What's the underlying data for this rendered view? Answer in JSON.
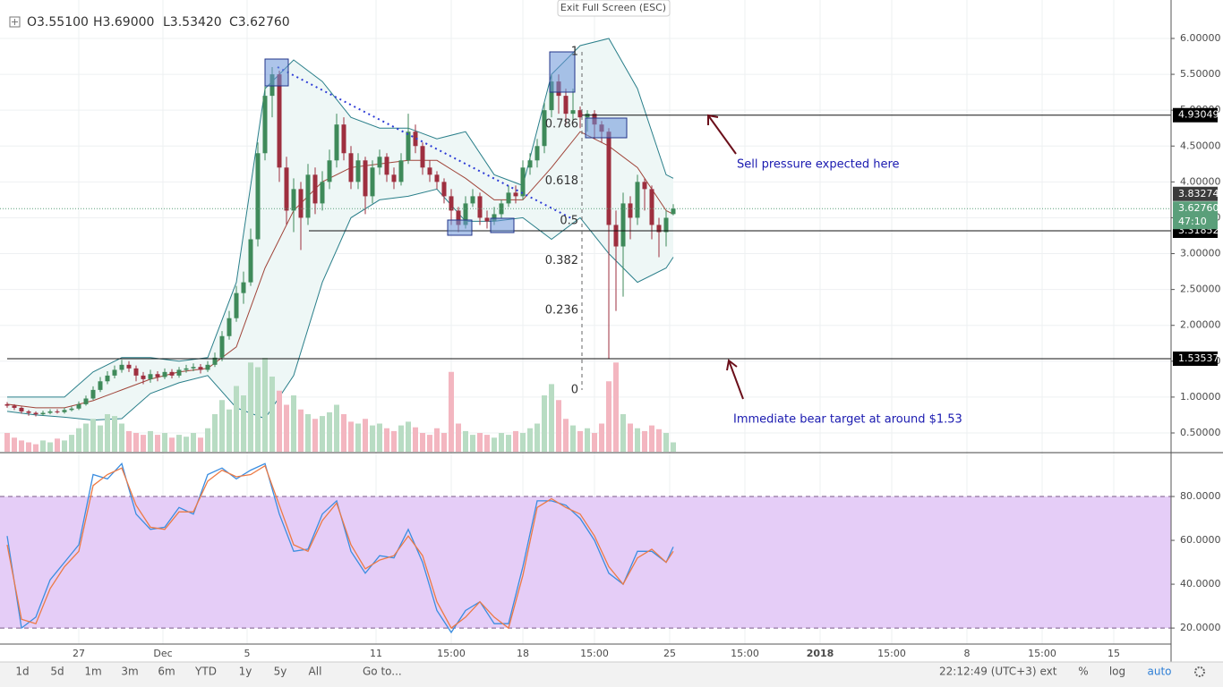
{
  "chart_data": {
    "type": "candlestick",
    "header": [
      "O3.55100",
      "H3.69000",
      "L3.53420",
      "C3.62760"
    ],
    "open": [
      0.9,
      0.88,
      0.85,
      0.8,
      0.78,
      0.76,
      0.78,
      0.8,
      0.79,
      0.82,
      0.84,
      0.9,
      0.98,
      1.1,
      1.22,
      1.3,
      1.38,
      1.45,
      1.4,
      1.3,
      1.25,
      1.32,
      1.28,
      1.35,
      1.3,
      1.38,
      1.4,
      1.42,
      1.38,
      1.45,
      1.55,
      1.85,
      2.1,
      2.45,
      2.6,
      3.2,
      4.4,
      5.2,
      5.5,
      4.2,
      3.6,
      3.9,
      3.5,
      4.1,
      3.7,
      4.0,
      4.3,
      4.8,
      4.4,
      4.0,
      4.3,
      3.8,
      4.2,
      4.35,
      4.1,
      4.0,
      4.3,
      4.7,
      4.5,
      4.2,
      4.1,
      4.0,
      3.8,
      3.6,
      3.4,
      3.7,
      3.8,
      3.5,
      3.45,
      3.55,
      3.7,
      3.85,
      3.8,
      4.2,
      4.3,
      4.5,
      5.0,
      5.4,
      5.2,
      4.95,
      5.0,
      4.9,
      4.95,
      4.8,
      4.7,
      3.4,
      3.1,
      3.7,
      3.5,
      4.0,
      3.9,
      3.4,
      3.3,
      3.551
    ],
    "high": [
      0.93,
      0.9,
      0.87,
      0.82,
      0.8,
      0.81,
      0.83,
      0.83,
      0.85,
      0.87,
      0.94,
      1.02,
      1.15,
      1.28,
      1.36,
      1.44,
      1.52,
      1.5,
      1.44,
      1.35,
      1.38,
      1.36,
      1.4,
      1.39,
      1.42,
      1.45,
      1.47,
      1.46,
      1.5,
      1.62,
      1.92,
      2.2,
      2.55,
      2.75,
      3.35,
      4.55,
      5.4,
      5.6,
      5.55,
      4.35,
      4.05,
      4.0,
      4.25,
      4.2,
      4.15,
      4.45,
      4.95,
      4.9,
      4.5,
      4.4,
      4.35,
      4.3,
      4.45,
      4.4,
      4.2,
      4.4,
      4.95,
      4.8,
      4.55,
      4.3,
      4.15,
      4.05,
      3.9,
      3.65,
      3.8,
      3.9,
      3.85,
      3.6,
      3.65,
      3.75,
      3.95,
      3.95,
      4.3,
      4.4,
      4.6,
      5.1,
      5.5,
      5.5,
      5.3,
      5.3,
      5.05,
      5.0,
      5.0,
      4.85,
      4.75,
      3.6,
      3.85,
      3.8,
      4.1,
      4.05,
      3.95,
      3.5,
      3.6,
      3.69
    ],
    "low": [
      0.85,
      0.82,
      0.77,
      0.74,
      0.73,
      0.74,
      0.76,
      0.77,
      0.77,
      0.8,
      0.82,
      0.88,
      0.96,
      1.07,
      1.18,
      1.26,
      1.34,
      1.35,
      1.22,
      1.18,
      1.2,
      1.22,
      1.25,
      1.26,
      1.27,
      1.34,
      1.36,
      1.33,
      1.35,
      1.42,
      1.5,
      1.8,
      2.05,
      2.3,
      2.55,
      3.1,
      4.3,
      4.9,
      4.0,
      3.4,
      3.3,
      3.05,
      3.4,
      3.55,
      3.6,
      3.9,
      4.2,
      4.3,
      3.9,
      3.9,
      3.55,
      3.7,
      4.1,
      4.0,
      3.9,
      3.95,
      4.25,
      4.4,
      4.1,
      4.0,
      3.9,
      3.7,
      3.4,
      3.3,
      3.35,
      3.65,
      3.4,
      3.35,
      3.4,
      3.5,
      3.65,
      3.7,
      3.75,
      4.1,
      4.2,
      4.4,
      4.9,
      4.95,
      4.8,
      4.85,
      4.75,
      4.7,
      4.6,
      4.55,
      1.53,
      2.2,
      2.4,
      3.2,
      3.4,
      3.6,
      3.2,
      2.95,
      3.1,
      3.5342
    ],
    "close": [
      0.88,
      0.85,
      0.8,
      0.78,
      0.76,
      0.78,
      0.8,
      0.79,
      0.82,
      0.84,
      0.9,
      0.98,
      1.1,
      1.22,
      1.3,
      1.38,
      1.45,
      1.4,
      1.3,
      1.25,
      1.32,
      1.28,
      1.35,
      1.3,
      1.38,
      1.4,
      1.42,
      1.38,
      1.45,
      1.55,
      1.85,
      2.1,
      2.45,
      2.6,
      3.2,
      4.4,
      5.2,
      5.5,
      4.2,
      3.6,
      3.9,
      3.5,
      4.1,
      3.7,
      4.0,
      4.3,
      4.8,
      4.4,
      4.0,
      4.3,
      3.8,
      4.2,
      4.35,
      4.1,
      4.0,
      4.3,
      4.7,
      4.5,
      4.2,
      4.1,
      4.0,
      3.8,
      3.6,
      3.4,
      3.7,
      3.8,
      3.5,
      3.45,
      3.55,
      3.7,
      3.85,
      3.8,
      4.2,
      4.3,
      4.5,
      5.0,
      5.4,
      5.2,
      4.95,
      5.0,
      4.9,
      4.95,
      4.8,
      4.7,
      3.4,
      3.1,
      3.7,
      3.5,
      4.0,
      3.9,
      3.4,
      3.3,
      3.5,
      3.6276
    ],
    "colors": {
      "up": "#3f8a5a",
      "down": "#9e2f3f"
    },
    "volume": {
      "values": [
        20,
        15,
        12,
        10,
        8,
        12,
        10,
        14,
        12,
        18,
        25,
        30,
        35,
        28,
        40,
        38,
        30,
        22,
        20,
        18,
        22,
        18,
        20,
        15,
        18,
        16,
        20,
        15,
        25,
        40,
        55,
        45,
        70,
        60,
        95,
        90,
        100,
        80,
        65,
        50,
        60,
        45,
        40,
        35,
        38,
        42,
        50,
        40,
        32,
        30,
        35,
        28,
        30,
        25,
        22,
        28,
        32,
        26,
        20,
        18,
        25,
        20,
        85,
        30,
        22,
        18,
        20,
        18,
        15,
        20,
        18,
        22,
        20,
        25,
        30,
        60,
        72,
        55,
        35,
        28,
        22,
        25,
        20,
        30,
        75,
        95,
        40,
        30,
        25,
        22,
        28,
        24,
        20,
        10
      ],
      "colors": {
        "up": "#b8dcc3",
        "down": "#f3b6c0"
      }
    },
    "bollinger": {
      "x": [
        0,
        4,
        8,
        12,
        16,
        20,
        24,
        28,
        32,
        36,
        40,
        44,
        48,
        52,
        56,
        60,
        64,
        68,
        72,
        76,
        80,
        84,
        88,
        92,
        93
      ],
      "upper": [
        1.0,
        1.0,
        1.0,
        1.35,
        1.55,
        1.55,
        1.5,
        1.55,
        2.6,
        5.3,
        5.7,
        5.4,
        4.9,
        4.75,
        4.75,
        4.6,
        4.7,
        4.1,
        3.95,
        5.5,
        5.9,
        6.0,
        5.3,
        4.1,
        4.05
      ],
      "middle": [
        0.9,
        0.85,
        0.85,
        0.95,
        1.1,
        1.25,
        1.35,
        1.4,
        1.7,
        2.8,
        3.6,
        4.0,
        4.2,
        4.25,
        4.3,
        4.3,
        4.05,
        3.75,
        3.75,
        4.2,
        4.7,
        4.5,
        4.2,
        3.6,
        3.55
      ],
      "lower": [
        0.8,
        0.75,
        0.72,
        0.68,
        0.7,
        1.05,
        1.2,
        1.3,
        0.85,
        0.7,
        1.3,
        2.6,
        3.5,
        3.75,
        3.8,
        3.9,
        3.45,
        3.45,
        3.5,
        3.2,
        3.5,
        3.0,
        2.6,
        2.8,
        2.95
      ],
      "color": "#2a7f8a",
      "middle_color": "#a0453a",
      "fill": "#eef7f6"
    },
    "xlim": [
      -1,
      162.5
    ],
    "xticks": [
      {
        "value": 10,
        "label": "27"
      },
      {
        "value": 21.75,
        "label": "Dec"
      },
      {
        "value": 33.5,
        "label": "5"
      },
      {
        "value": 51.5,
        "label": "11"
      },
      {
        "value": 62,
        "label": "15:00"
      },
      {
        "value": 72,
        "label": "18"
      },
      {
        "value": 82,
        "label": "15:00"
      },
      {
        "value": 92.5,
        "label": "25"
      },
      {
        "value": 103,
        "label": "15:00"
      },
      {
        "value": 113.5,
        "label": "2018"
      },
      {
        "value": 123.5,
        "label": "15:00"
      },
      {
        "value": 134,
        "label": "8"
      },
      {
        "value": 144.5,
        "label": "15:00"
      },
      {
        "value": 154.5,
        "label": "15"
      }
    ],
    "ylim": [
      0.238,
      6.536
    ],
    "yticks": [
      {
        "value": 0.5,
        "label": "0.50000"
      },
      {
        "value": 1,
        "label": "1.00000"
      },
      {
        "value": 1.5,
        "label": "1.50000"
      },
      {
        "value": 2,
        "label": "2.00000"
      },
      {
        "value": 2.5,
        "label": "2.50000"
      },
      {
        "value": 3,
        "label": "3.00000"
      },
      {
        "value": 3.5,
        "label": "3.50000"
      },
      {
        "value": 4,
        "label": "4.00000"
      },
      {
        "value": 4.5,
        "label": "4.50000"
      },
      {
        "value": 5,
        "label": "5.00000"
      },
      {
        "value": 5.5,
        "label": "5.50000"
      },
      {
        "value": 6,
        "label": "6.00000"
      }
    ],
    "grid": true,
    "price_lines": [
      {
        "value": 4.93049,
        "label": "4.93049",
        "color": "#000000"
      },
      {
        "value": 3.83274,
        "label": "3.83274",
        "color": "#3b3b3b"
      },
      {
        "value": 3.31852,
        "label": "3.31852",
        "color": "#000000"
      },
      {
        "value": 1.53537,
        "label": "1.53537",
        "color": "#000000"
      }
    ],
    "current": {
      "value": 3.6276,
      "label": "3.62760",
      "countdown": "47:10",
      "color": "#5a9f7a"
    },
    "fib": {
      "levels": [
        1,
        0.786,
        0.618,
        0.5,
        0.382,
        0.236,
        0
      ],
      "low": 1.1,
      "high": 5.81
    },
    "annotations": [
      "Sell pressure expected here",
      "Immediate bear target at around $1.53"
    ],
    "stoch": {
      "x": [
        0,
        2,
        4,
        6,
        8,
        10,
        12,
        14,
        16,
        18,
        20,
        22,
        24,
        26,
        28,
        30,
        32,
        34,
        36,
        38,
        40,
        42,
        44,
        46,
        48,
        50,
        52,
        54,
        56,
        58,
        60,
        62,
        64,
        66,
        68,
        70,
        72,
        74,
        76,
        78,
        80,
        82,
        84,
        86,
        88,
        90,
        92,
        93
      ],
      "k": [
        62,
        20,
        25,
        42,
        50,
        58,
        90,
        88,
        95,
        72,
        65,
        66,
        75,
        72,
        90,
        93,
        88,
        92,
        95,
        72,
        55,
        56,
        72,
        78,
        55,
        45,
        53,
        52,
        65,
        50,
        28,
        18,
        28,
        32,
        22,
        22,
        48,
        78,
        78,
        76,
        70,
        60,
        45,
        40,
        55,
        55,
        50,
        57
      ],
      "d": [
        58,
        24,
        22,
        38,
        48,
        55,
        85,
        90,
        93,
        76,
        66,
        65,
        73,
        73,
        87,
        92,
        89,
        90,
        94,
        76,
        58,
        55,
        69,
        77,
        58,
        47,
        51,
        53,
        62,
        53,
        32,
        20,
        25,
        32,
        25,
        20,
        44,
        75,
        79,
        75,
        72,
        62,
        48,
        40,
        52,
        56,
        50,
        55
      ],
      "k_color": "#3a8de0",
      "d_color": "#ec7a45",
      "ylim": [
        12.7,
        99.6
      ],
      "yticks": [
        {
          "value": 20,
          "label": "20.0000"
        },
        {
          "value": 40,
          "label": "40.0000"
        },
        {
          "value": 60,
          "label": "60.0000"
        },
        {
          "value": 80,
          "label": "80.0000"
        }
      ],
      "band": [
        20,
        80
      ],
      "band_color": "#e5cdf7"
    }
  },
  "ui": {
    "exit_full_screen": "Exit Full Screen (ESC)",
    "ranges": [
      "1d",
      "5d",
      "1m",
      "3m",
      "6m",
      "YTD",
      "1y",
      "5y",
      "All"
    ],
    "goto": "Go to...",
    "clock": "22:12:49 (UTC+3)",
    "options": [
      "ext",
      "%",
      "log",
      "auto"
    ]
  }
}
